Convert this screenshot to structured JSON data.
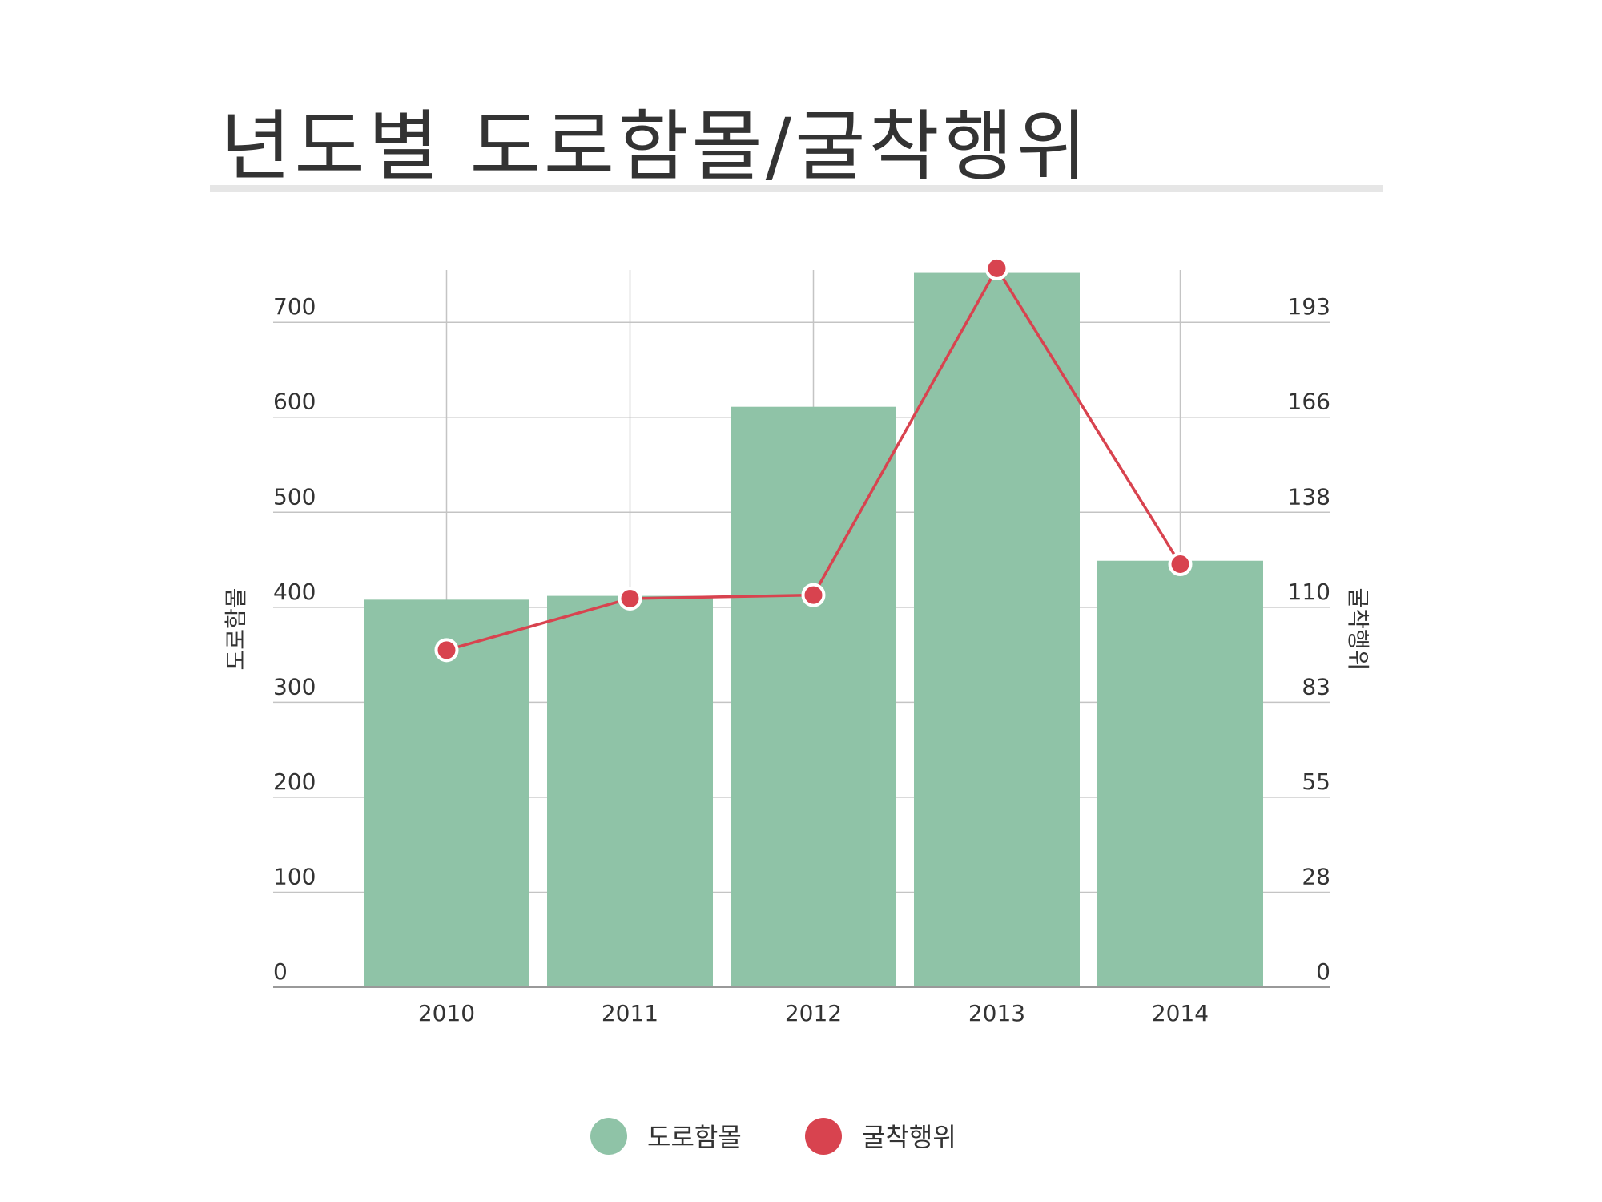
{
  "colors": {
    "bar": "#8fc3a7",
    "line": "#d8434f",
    "grid": "#c4c4c4",
    "axis": "#999999",
    "text": "#333333"
  },
  "chart_data": {
    "type": "bar",
    "title": "년도별 도로함몰/굴착행위",
    "categories": [
      "2010",
      "2011",
      "2012",
      "2013",
      "2014"
    ],
    "y_left": {
      "label": "도로함몰",
      "ticks": [
        "0",
        "100",
        "200",
        "300",
        "400",
        "500",
        "600",
        "700"
      ],
      "range": [
        0,
        755
      ]
    },
    "y_right": {
      "label": "굴착행위",
      "ticks": [
        "0",
        "28",
        "55",
        "83",
        "110",
        "138",
        "166",
        "193"
      ],
      "range": [
        0,
        208.5
      ]
    },
    "series": [
      {
        "name": "도로함몰",
        "type": "bar",
        "axis": "left",
        "values": [
          408,
          412,
          611,
          752,
          449
        ]
      },
      {
        "name": "굴착행위",
        "type": "line",
        "axis": "right",
        "values": [
          98,
          113,
          114,
          209,
          123
        ]
      }
    ],
    "grid": true,
    "legend_position": "bottom"
  }
}
